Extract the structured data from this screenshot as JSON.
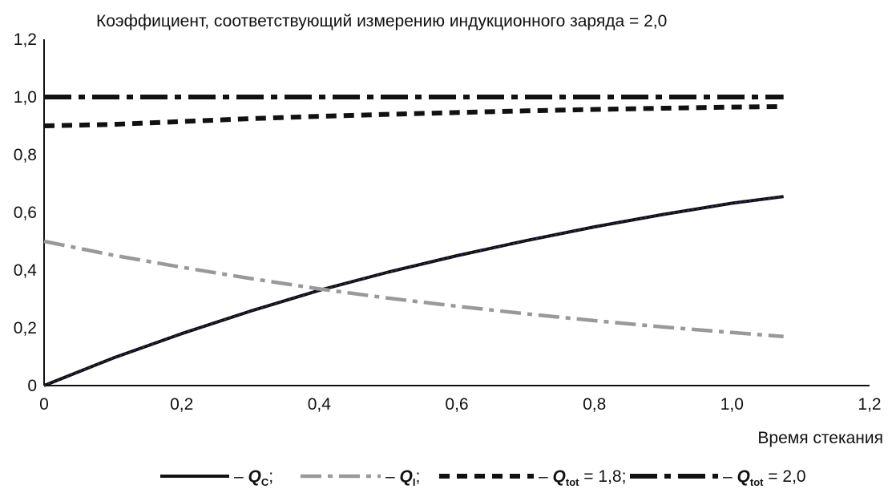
{
  "chart_data": {
    "type": "line",
    "title": "Коэффициент, соответствующий измерению индукционного заряда = 2,0",
    "xlabel": "Время стекания",
    "ylabel": "",
    "xlim": [
      0,
      1.2
    ],
    "ylim": [
      0,
      1.2
    ],
    "x_ticks": [
      "0",
      "0,2",
      "0,4",
      "0,6",
      "0,8",
      "1,0",
      "1,2"
    ],
    "y_ticks": [
      "0",
      "0,2",
      "0,4",
      "0,6",
      "0,8",
      "1,0",
      "1,2"
    ],
    "grid": false,
    "legend_position": "bottom",
    "series": [
      {
        "key": "qc",
        "name_main": "Q",
        "name_sub": "C",
        "name_tail": ";",
        "color": "#111111",
        "dash": "solid",
        "x": [
          0,
          0.1,
          0.2,
          0.3,
          0.4,
          0.5,
          0.6,
          0.7,
          0.8,
          0.9,
          1.0,
          1.075
        ],
        "y": [
          0,
          0.095,
          0.18,
          0.258,
          0.33,
          0.393,
          0.45,
          0.502,
          0.55,
          0.593,
          0.632,
          0.655
        ]
      },
      {
        "key": "qi",
        "name_main": "Q",
        "name_sub": "I",
        "name_tail": ";",
        "color": "#999999",
        "dash": "dashdot",
        "x": [
          0,
          0.1,
          0.2,
          0.3,
          0.4,
          0.5,
          0.6,
          0.7,
          0.8,
          0.9,
          1.0,
          1.075
        ],
        "y": [
          0.5,
          0.452,
          0.41,
          0.371,
          0.335,
          0.303,
          0.275,
          0.249,
          0.225,
          0.203,
          0.184,
          0.17
        ]
      },
      {
        "key": "qtot18",
        "name_main": "Q",
        "name_sub": "tot",
        "name_tail": " = 1,8;",
        "color": "#111111",
        "dash": "dash",
        "x": [
          0,
          0.1,
          0.2,
          0.3,
          0.4,
          0.5,
          0.6,
          0.7,
          0.8,
          0.9,
          1.0,
          1.075
        ],
        "y": [
          0.9,
          0.905,
          0.915,
          0.925,
          0.933,
          0.94,
          0.946,
          0.952,
          0.957,
          0.961,
          0.965,
          0.967
        ]
      },
      {
        "key": "qtot20",
        "name_main": "Q",
        "name_sub": "tot",
        "name_tail": " = 2,0",
        "color": "#111111",
        "dash": "longdashdot",
        "x": [
          0,
          1.075
        ],
        "y": [
          1.0,
          1.0
        ]
      }
    ]
  }
}
